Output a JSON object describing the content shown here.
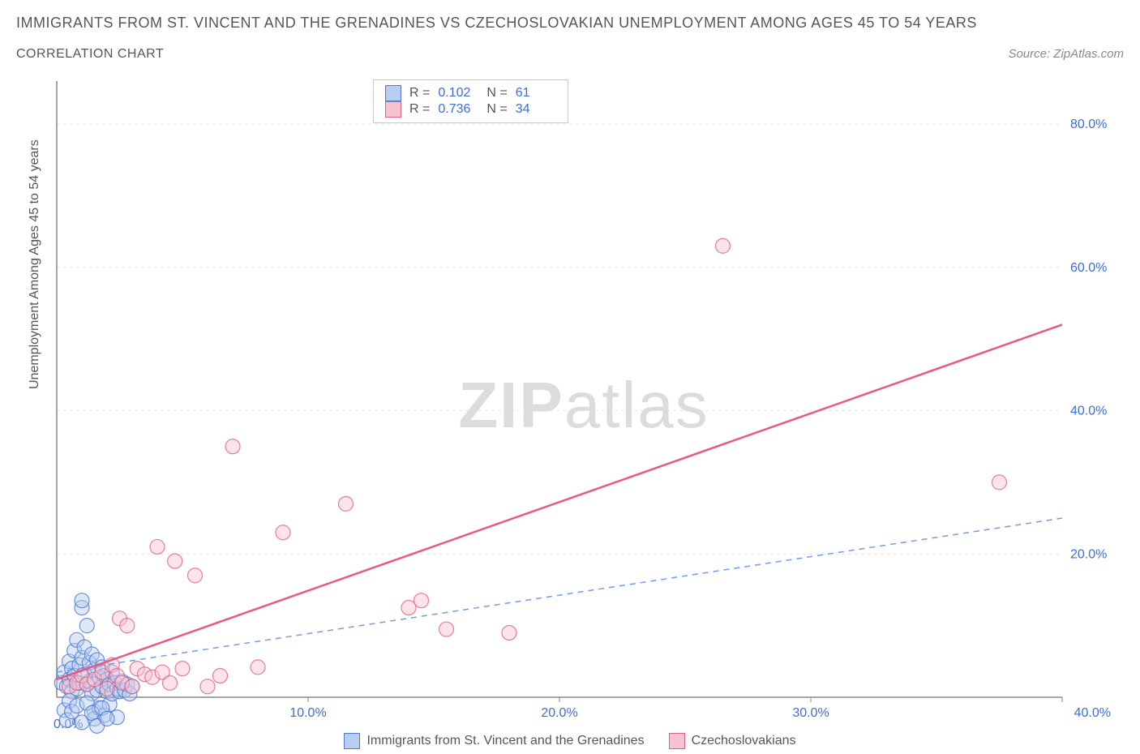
{
  "title": "IMMIGRANTS FROM ST. VINCENT AND THE GRENADINES VS CZECHOSLOVAKIAN UNEMPLOYMENT AMONG AGES 45 TO 54 YEARS",
  "subtitle": "CORRELATION CHART",
  "source": "Source: ZipAtlas.com",
  "ylabel": "Unemployment Among Ages 45 to 54 years",
  "watermark_bold": "ZIP",
  "watermark_light": "atlas",
  "chart": {
    "type": "scatter",
    "background_color": "#ffffff",
    "grid_color": "#e6e6e6",
    "axis_color": "#888888",
    "xlim": [
      0,
      40
    ],
    "ylim": [
      0,
      86
    ],
    "xtick_step": 10,
    "ytick_step": 20,
    "xtick_labels": [
      "0.0%",
      "10.0%",
      "20.0%",
      "30.0%",
      "40.0%"
    ],
    "ytick_labels": [
      "0.0%",
      "20.0%",
      "40.0%",
      "60.0%",
      "80.0%"
    ],
    "axis_label_color": "#3b6fd6",
    "axis_label_fontsize": 16,
    "marker_radius": 9,
    "marker_opacity": 0.45,
    "series": [
      {
        "name": "Immigrants from St. Vincent and the Grenadines",
        "color": "#6f9de8",
        "fill": "#b7cdf2",
        "stroke": "#4a7bd0",
        "line_style": "dashed",
        "line_width": 1.5,
        "trend": {
          "x1": 0,
          "y1": 3.5,
          "x2": 40,
          "y2": 25
        },
        "R": "0.102",
        "N": "61",
        "points": [
          [
            0.2,
            2.0
          ],
          [
            0.3,
            3.5
          ],
          [
            0.4,
            1.5
          ],
          [
            0.5,
            5.0
          ],
          [
            0.5,
            2.5
          ],
          [
            0.6,
            0.8
          ],
          [
            0.6,
            4.0
          ],
          [
            0.7,
            6.5
          ],
          [
            0.7,
            3.0
          ],
          [
            0.8,
            1.2
          ],
          [
            0.8,
            8.0
          ],
          [
            0.9,
            4.5
          ],
          [
            0.9,
            2.0
          ],
          [
            1.0,
            12.5
          ],
          [
            1.0,
            13.5
          ],
          [
            1.0,
            5.5
          ],
          [
            1.1,
            7.0
          ],
          [
            1.1,
            3.2
          ],
          [
            1.2,
            1.8
          ],
          [
            1.2,
            10.0
          ],
          [
            1.3,
            4.8
          ],
          [
            1.3,
            2.2
          ],
          [
            1.4,
            6.0
          ],
          [
            1.4,
            0.5
          ],
          [
            1.5,
            -2.0
          ],
          [
            1.5,
            3.8
          ],
          [
            1.5,
            -3.0
          ],
          [
            1.6,
            5.2
          ],
          [
            1.6,
            1.0
          ],
          [
            1.7,
            2.8
          ],
          [
            1.7,
            -1.5
          ],
          [
            1.8,
            4.2
          ],
          [
            1.8,
            1.5
          ],
          [
            1.9,
            -2.5
          ],
          [
            1.9,
            3.0
          ],
          [
            2.0,
            0.8
          ],
          [
            2.0,
            2.5
          ],
          [
            2.1,
            1.8
          ],
          [
            2.1,
            -1.0
          ],
          [
            2.2,
            3.5
          ],
          [
            2.2,
            0.5
          ],
          [
            2.3,
            2.0
          ],
          [
            2.4,
            1.2
          ],
          [
            2.4,
            -2.8
          ],
          [
            2.5,
            0.8
          ],
          [
            2.6,
            2.2
          ],
          [
            2.7,
            1.0
          ],
          [
            2.8,
            1.8
          ],
          [
            2.9,
            0.5
          ],
          [
            3.0,
            1.5
          ],
          [
            0.3,
            -1.8
          ],
          [
            0.4,
            -3.2
          ],
          [
            0.5,
            -0.5
          ],
          [
            0.6,
            -2.0
          ],
          [
            0.8,
            -1.2
          ],
          [
            1.0,
            -3.5
          ],
          [
            1.2,
            -0.8
          ],
          [
            1.4,
            -2.2
          ],
          [
            1.6,
            -4.0
          ],
          [
            1.8,
            -1.5
          ],
          [
            2.0,
            -3.0
          ]
        ]
      },
      {
        "name": "Czechoslovakians",
        "color": "#ea5a7f",
        "fill": "#f8c3d0",
        "stroke": "#e0607f",
        "line_style": "solid",
        "line_width": 2.5,
        "trend": {
          "x1": 0,
          "y1": 2.5,
          "x2": 40,
          "y2": 52
        },
        "R": "0.736",
        "N": "34",
        "points": [
          [
            0.5,
            1.5
          ],
          [
            0.8,
            2.0
          ],
          [
            1.0,
            3.0
          ],
          [
            1.2,
            1.8
          ],
          [
            1.5,
            2.5
          ],
          [
            1.8,
            3.5
          ],
          [
            2.0,
            1.2
          ],
          [
            2.2,
            4.5
          ],
          [
            2.4,
            3.0
          ],
          [
            2.5,
            11.0
          ],
          [
            2.6,
            2.0
          ],
          [
            2.8,
            10.0
          ],
          [
            3.0,
            1.5
          ],
          [
            3.2,
            4.0
          ],
          [
            3.5,
            3.2
          ],
          [
            3.8,
            2.8
          ],
          [
            4.0,
            21.0
          ],
          [
            4.2,
            3.5
          ],
          [
            4.5,
            2.0
          ],
          [
            4.7,
            19.0
          ],
          [
            5.0,
            4.0
          ],
          [
            5.5,
            17.0
          ],
          [
            6.0,
            1.5
          ],
          [
            6.5,
            3.0
          ],
          [
            7.0,
            35.0
          ],
          [
            8.0,
            4.2
          ],
          [
            9.0,
            23.0
          ],
          [
            11.5,
            27.0
          ],
          [
            14.0,
            12.5
          ],
          [
            14.5,
            13.5
          ],
          [
            15.5,
            9.5
          ],
          [
            18.0,
            9.0
          ],
          [
            26.5,
            63.0
          ],
          [
            37.5,
            30.0
          ]
        ]
      }
    ]
  },
  "legend": {
    "series1_label": "Immigrants from St. Vincent and the Grenadines",
    "series2_label": "Czechoslovakians"
  },
  "stats": {
    "r_label": "R =",
    "n_label": "N ="
  }
}
